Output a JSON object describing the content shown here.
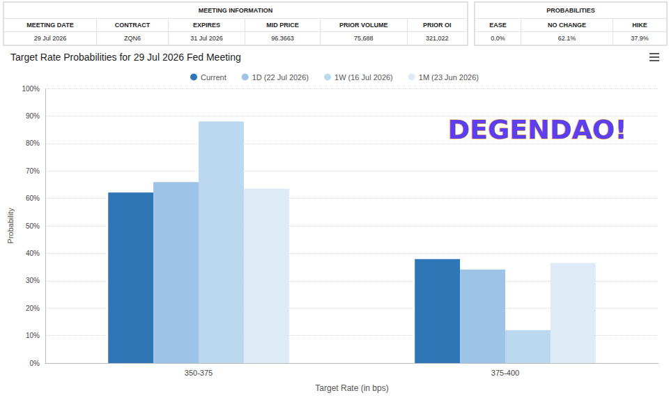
{
  "meeting_table": {
    "title": "MEETING INFORMATION",
    "columns": [
      "MEETING DATE",
      "CONTRACT",
      "EXPIRES",
      "MID PRICE",
      "PRIOR VOLUME",
      "PRIOR OI"
    ],
    "row": [
      "29 Jul 2026",
      "ZQN6",
      "31 Jul 2026",
      "96.3663",
      "75,688",
      "321,022"
    ]
  },
  "probabilities_table": {
    "title": "PROBABILITIES",
    "columns": [
      "EASE",
      "NO CHANGE",
      "HIKE"
    ],
    "row": [
      "0.0%",
      "62.1%",
      "37.9%"
    ]
  },
  "chart_data": {
    "type": "bar",
    "title": "Target Rate Probabilities for 29 Jul 2026 Fed Meeting",
    "xlabel": "Target Rate (in bps)",
    "ylabel": "Probability",
    "categories": [
      "350-375",
      "375-400"
    ],
    "series": [
      {
        "name": "Current",
        "color": "#2f76b7",
        "values": [
          62.1,
          37.9
        ]
      },
      {
        "name": "1D (22 Jul 2026)",
        "color": "#9dc3e6",
        "values": [
          65.9,
          34.1
        ]
      },
      {
        "name": "1W (16 Jul 2026)",
        "color": "#bcd8ef",
        "values": [
          88.0,
          12.0
        ]
      },
      {
        "name": "1M (23 Jun 2026)",
        "color": "#deebf7",
        "values": [
          63.5,
          36.5
        ]
      }
    ],
    "ylim": [
      0,
      100
    ],
    "yticks": [
      {
        "value": 0,
        "label": "0%"
      },
      {
        "value": 10,
        "label": "10%"
      },
      {
        "value": 20,
        "label": "20%"
      },
      {
        "value": 30,
        "label": "30%"
      },
      {
        "value": 40,
        "label": "40%"
      },
      {
        "value": 50,
        "label": "50%"
      },
      {
        "value": 60,
        "label": "60%"
      },
      {
        "value": 70,
        "label": "70%"
      },
      {
        "value": 80,
        "label": "80%"
      },
      {
        "value": 90,
        "label": "90%"
      },
      {
        "value": 100,
        "label": "100%"
      }
    ],
    "grid": true,
    "legend": "top",
    "annotations": [
      "DEGENDAO!"
    ]
  }
}
